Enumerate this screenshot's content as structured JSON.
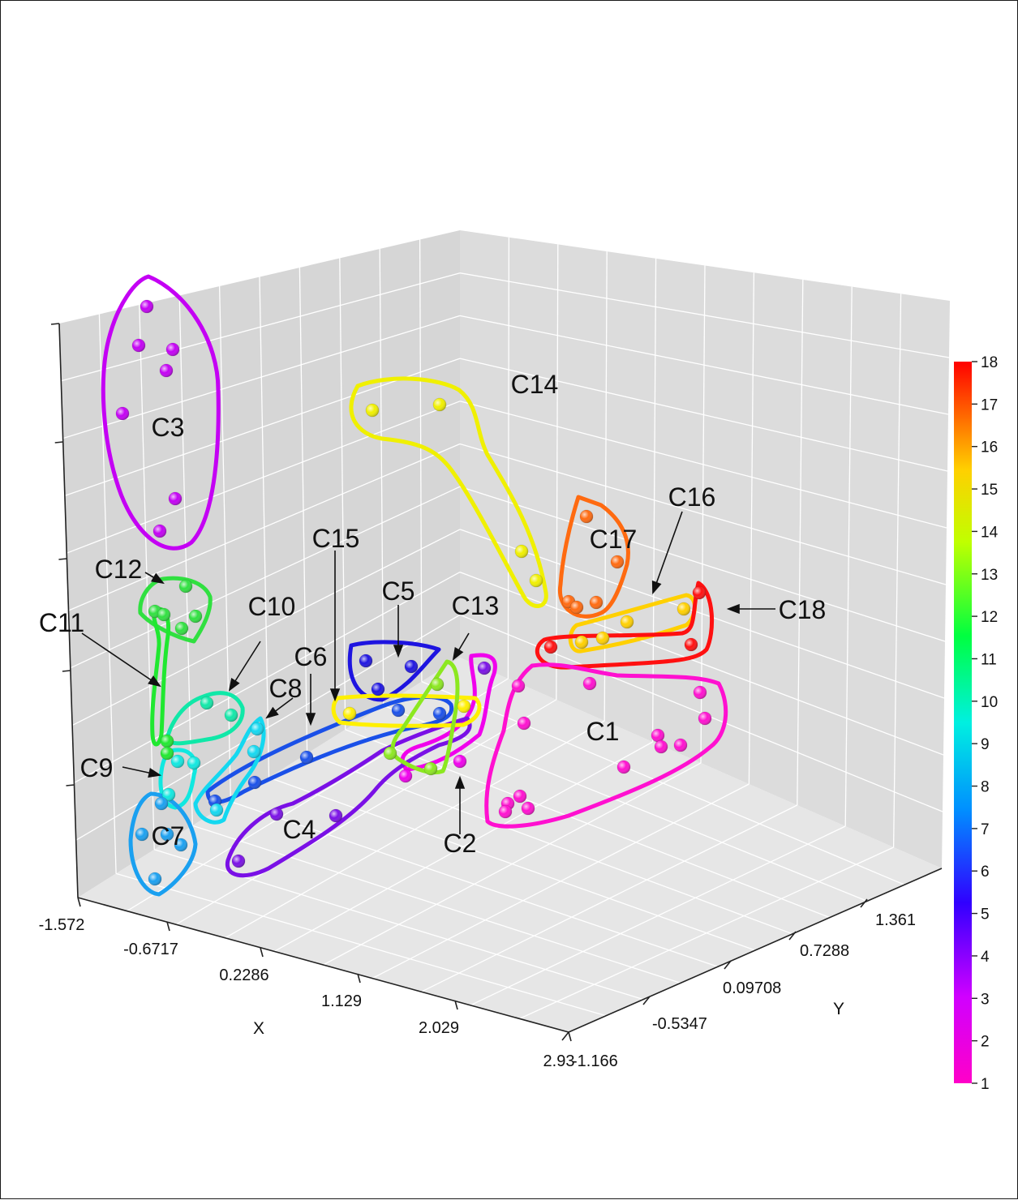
{
  "chart_data": {
    "type": "scatter",
    "projection": "3d",
    "title": "",
    "x_axis": {
      "label": "X",
      "ticks": [
        "-1.572",
        "-0.6717",
        "0.2286",
        "1.129",
        "2.029",
        "2.93"
      ]
    },
    "y_axis": {
      "label": "Y",
      "ticks": [
        "-1.166",
        "-0.5347",
        "0.09708",
        "0.7288",
        "1.361"
      ]
    },
    "z_axis": {
      "label": "",
      "ticks": []
    },
    "colorbar": {
      "min": 1,
      "max": 18,
      "ticks": [
        "1",
        "2",
        "3",
        "4",
        "5",
        "6",
        "7",
        "8",
        "9",
        "10",
        "11",
        "12",
        "13",
        "14",
        "15",
        "16",
        "17",
        "18"
      ]
    },
    "grid": true,
    "clusters": [
      {
        "label": "C1",
        "value": 1,
        "color": "#ff10d0"
      },
      {
        "label": "C2",
        "value": 2,
        "color": "#f000ec"
      },
      {
        "label": "C3",
        "value": 3,
        "color": "#c400f4"
      },
      {
        "label": "C4",
        "value": 4,
        "color": "#7a10e6"
      },
      {
        "label": "C5",
        "value": 5,
        "color": "#1e14e0"
      },
      {
        "label": "C6",
        "value": 6,
        "color": "#1a50e8"
      },
      {
        "label": "C7",
        "value": 7,
        "color": "#1aa0f0"
      },
      {
        "label": "C8",
        "value": 8,
        "color": "#14d8f0"
      },
      {
        "label": "C9",
        "value": 9,
        "color": "#10e8e0"
      },
      {
        "label": "C10",
        "value": 10,
        "color": "#10e8a8"
      },
      {
        "label": "C11",
        "value": 11,
        "color": "#20e830"
      },
      {
        "label": "C12",
        "value": 12,
        "color": "#30e040"
      },
      {
        "label": "C13",
        "value": 13,
        "color": "#8ce820"
      },
      {
        "label": "C14",
        "value": 14,
        "color": "#f0f000"
      },
      {
        "label": "C15",
        "value": 15,
        "color": "#fff000"
      },
      {
        "label": "C16",
        "value": 16,
        "color": "#ffd000"
      },
      {
        "label": "C17",
        "value": 17,
        "color": "#ff6a10"
      },
      {
        "label": "C18",
        "value": 18,
        "color": "#ff1010"
      }
    ]
  }
}
